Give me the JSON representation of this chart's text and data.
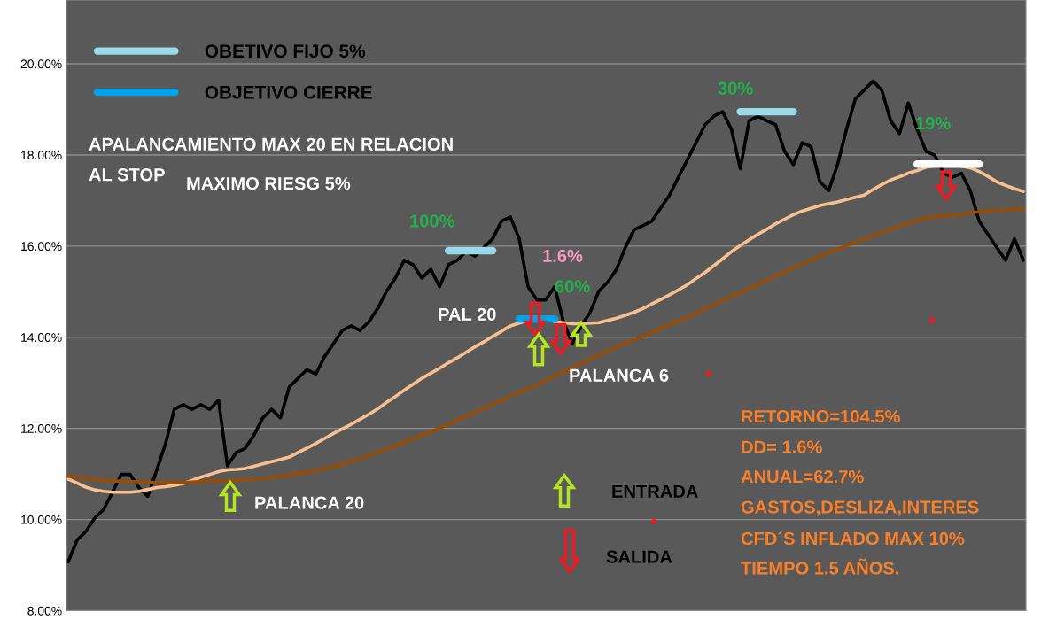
{
  "chart_data": {
    "type": "line",
    "categories": [
      null,
      null,
      null,
      null,
      null,
      null,
      null,
      null,
      null,
      null,
      null,
      null,
      null,
      null,
      null,
      null,
      null,
      null,
      null,
      null,
      null,
      null,
      null,
      null,
      null,
      null,
      null,
      null,
      null,
      null,
      null,
      null,
      null,
      null,
      null,
      null,
      null,
      null,
      null,
      null,
      null,
      null,
      null,
      null,
      null,
      null,
      null,
      null,
      null,
      null,
      null,
      null,
      null,
      null,
      null,
      null,
      null,
      null,
      null,
      null,
      null,
      null,
      null,
      null,
      null,
      null,
      null,
      null,
      null,
      null,
      null,
      null,
      null,
      null,
      null,
      null,
      null,
      null,
      null,
      null,
      null,
      null,
      null,
      null,
      null,
      null,
      null,
      null,
      null,
      null,
      null,
      null,
      null,
      null,
      null,
      null,
      null,
      null,
      null,
      null,
      null,
      null,
      null,
      null,
      null,
      null,
      null,
      null,
      null
    ],
    "series": [
      {
        "color": "#000000",
        "values": [
          9.07,
          9.55,
          9.74,
          10.03,
          10.22,
          10.6,
          10.99,
          10.99,
          10.7,
          10.51,
          11.08,
          11.66,
          12.42,
          12.52,
          12.42,
          12.52,
          12.42,
          12.62,
          11.18,
          11.47,
          11.56,
          11.85,
          12.23,
          12.42,
          12.23,
          12.91,
          13.1,
          13.29,
          13.19,
          13.58,
          13.86,
          14.15,
          14.25,
          14.15,
          14.34,
          14.63,
          15.01,
          15.3,
          15.69,
          15.59,
          15.3,
          15.49,
          15.11,
          15.59,
          15.69,
          15.88,
          15.78,
          15.97,
          16.16,
          16.55,
          16.64,
          16.16,
          15.11,
          14.82,
          14.82,
          15.11,
          14.34,
          13.86,
          14.25,
          14.54,
          15.01,
          15.21,
          15.49,
          15.97,
          16.36,
          16.45,
          16.55,
          16.84,
          17.12,
          17.51,
          17.89,
          18.27,
          18.66,
          18.85,
          18.95,
          18.56,
          17.7,
          18.75,
          18.85,
          18.75,
          18.66,
          18.08,
          17.79,
          18.27,
          18.18,
          17.41,
          17.22,
          17.79,
          18.56,
          19.23,
          19.42,
          19.62,
          19.42,
          18.75,
          18.47,
          19.14,
          18.56,
          18.08,
          17.99,
          17.6,
          17.51,
          17.6,
          17.22,
          16.55,
          16.26,
          15.97,
          15.69,
          16.16,
          15.69
        ]
      },
      {
        "color": "#f8c090",
        "values": [
          10.89,
          10.8,
          10.71,
          10.65,
          10.62,
          10.6,
          10.6,
          10.6,
          10.62,
          10.66,
          10.7,
          10.72,
          10.75,
          10.79,
          10.86,
          10.93,
          10.99,
          11.05,
          11.09,
          11.1,
          11.12,
          11.17,
          11.22,
          11.27,
          11.32,
          11.37,
          11.47,
          11.57,
          11.67,
          11.78,
          11.89,
          11.99,
          12.09,
          12.2,
          12.31,
          12.43,
          12.57,
          12.7,
          12.84,
          12.97,
          13.1,
          13.21,
          13.32,
          13.44,
          13.55,
          13.67,
          13.79,
          13.9,
          14.02,
          14.13,
          14.25,
          14.31,
          14.37,
          null,
          null,
          14.34,
          14.32,
          14.3,
          14.3,
          14.31,
          14.32,
          14.37,
          14.42,
          14.48,
          14.55,
          14.63,
          14.73,
          14.83,
          14.93,
          15.04,
          15.15,
          15.29,
          15.42,
          15.57,
          15.72,
          15.88,
          16.01,
          16.14,
          16.26,
          16.37,
          16.49,
          16.59,
          16.69,
          16.77,
          16.83,
          16.89,
          16.93,
          16.97,
          17.02,
          17.07,
          17.12,
          17.24,
          17.35,
          17.45,
          17.52,
          17.6,
          17.66,
          17.73,
          17.77,
          17.78,
          17.79,
          17.75,
          17.72,
          17.64,
          17.53,
          17.41,
          17.33,
          17.26,
          17.2
        ]
      },
      {
        "color": "#994c00",
        "values": [
          10.95,
          10.93,
          10.9,
          10.88,
          10.86,
          10.85,
          10.84,
          10.83,
          10.83,
          10.82,
          10.81,
          10.81,
          10.81,
          10.81,
          10.82,
          10.83,
          10.84,
          10.85,
          10.85,
          10.86,
          10.87,
          10.89,
          10.9,
          10.92,
          10.95,
          10.97,
          11.01,
          11.04,
          11.08,
          11.12,
          11.16,
          11.22,
          11.28,
          11.34,
          11.41,
          11.47,
          11.55,
          11.62,
          11.7,
          11.77,
          11.85,
          11.93,
          12.0,
          12.09,
          12.18,
          12.27,
          12.35,
          12.44,
          12.53,
          12.62,
          12.71,
          12.79,
          12.87,
          12.96,
          13.05,
          13.15,
          13.24,
          13.33,
          13.43,
          13.52,
          13.61,
          13.7,
          13.79,
          13.87,
          13.94,
          14.02,
          14.1,
          14.19,
          14.27,
          14.36,
          14.44,
          14.53,
          14.62,
          14.72,
          14.81,
          14.9,
          14.98,
          15.07,
          15.16,
          15.25,
          15.34,
          15.43,
          15.52,
          15.61,
          15.7,
          15.78,
          15.86,
          15.93,
          16.01,
          16.08,
          16.15,
          16.23,
          16.3,
          16.37,
          16.44,
          16.51,
          16.56,
          16.61,
          16.65,
          16.67,
          16.68,
          16.7,
          16.73,
          16.75,
          16.77,
          16.78,
          16.8,
          16.81,
          16.82
        ]
      },
      {
        "name": "OBETIVO FIJO 5%",
        "color": "#99dbea",
        "values": [
          null,
          null,
          null,
          null,
          null,
          null,
          null,
          null,
          null,
          null,
          null,
          null,
          null,
          null,
          null,
          null,
          null,
          null,
          null,
          null,
          null,
          null,
          null,
          null,
          null,
          null,
          null,
          null,
          null,
          null,
          null,
          null,
          null,
          null,
          null,
          null,
          null,
          null,
          null,
          null,
          null,
          null,
          null,
          15.9,
          15.9,
          15.9,
          15.9,
          15.9,
          15.9,
          null,
          null,
          null,
          null,
          null,
          null,
          null,
          null,
          null,
          null,
          null,
          null,
          null,
          null,
          null,
          null,
          null,
          null,
          null,
          null,
          null,
          null,
          null,
          null,
          null,
          null,
          null,
          18.95,
          18.95,
          18.95,
          18.95,
          18.95,
          18.95,
          18.95,
          null,
          null,
          null,
          null,
          null,
          null,
          null,
          null,
          null,
          null,
          null,
          null,
          null,
          null,
          null,
          null,
          null,
          null,
          null,
          null,
          null,
          null,
          null,
          null,
          null,
          null
        ]
      },
      {
        "name": "OBJETIVO CIERRE",
        "color": "#00a2e8",
        "values": [
          null,
          null,
          null,
          null,
          null,
          null,
          null,
          null,
          null,
          null,
          null,
          null,
          null,
          null,
          null,
          null,
          null,
          null,
          null,
          null,
          null,
          null,
          null,
          null,
          null,
          null,
          null,
          null,
          null,
          null,
          null,
          null,
          null,
          null,
          null,
          null,
          null,
          null,
          null,
          null,
          null,
          null,
          null,
          null,
          null,
          null,
          null,
          null,
          null,
          null,
          null,
          14.4,
          14.4,
          14.4,
          14.4,
          14.4,
          null,
          null,
          null,
          null,
          null,
          null,
          null,
          null,
          null,
          null,
          null,
          null,
          null,
          null,
          null,
          null,
          null,
          null,
          null,
          null,
          null,
          null,
          null,
          null,
          null,
          null,
          null,
          null,
          null,
          null,
          null,
          null,
          null,
          null,
          null,
          null,
          null,
          null,
          null,
          null,
          null,
          null,
          null,
          null,
          null,
          null,
          null,
          null,
          null,
          null,
          null,
          null,
          null
        ]
      },
      {
        "color": "#ffffff",
        "values": [
          null,
          null,
          null,
          null,
          null,
          null,
          null,
          null,
          null,
          null,
          null,
          null,
          null,
          null,
          null,
          null,
          null,
          null,
          null,
          null,
          null,
          null,
          null,
          null,
          null,
          null,
          null,
          null,
          null,
          null,
          null,
          null,
          null,
          null,
          null,
          null,
          null,
          null,
          null,
          null,
          null,
          null,
          null,
          null,
          null,
          null,
          null,
          null,
          null,
          null,
          null,
          null,
          null,
          null,
          null,
          null,
          null,
          null,
          null,
          null,
          null,
          null,
          null,
          null,
          null,
          null,
          null,
          null,
          null,
          null,
          null,
          null,
          null,
          null,
          null,
          null,
          null,
          null,
          null,
          null,
          null,
          null,
          null,
          null,
          null,
          null,
          null,
          null,
          null,
          null,
          null,
          null,
          null,
          null,
          null,
          null,
          17.8,
          17.8,
          17.8,
          17.8,
          17.8,
          17.8,
          17.8,
          17.8,
          null,
          null,
          null,
          null,
          null
        ]
      }
    ],
    "ylim": [
      8,
      21.4
    ],
    "yticks": [
      {
        "value": 8,
        "label": "8.00%"
      },
      {
        "value": 10,
        "label": "10.00%"
      },
      {
        "value": 12,
        "label": "12.00%"
      },
      {
        "value": 14,
        "label": "14.00%"
      },
      {
        "value": 16,
        "label": "16.00%"
      },
      {
        "value": 18,
        "label": "18.00%"
      },
      {
        "value": 20,
        "label": "20.00%"
      }
    ],
    "grid": "y",
    "legend": "top left",
    "tick_labels": "y",
    "annotations": [
      "100%",
      "30%",
      "19%",
      "60%",
      "1.6%",
      "PAL 20",
      "PALANCA 6",
      "PALANCA 20",
      "APALANCAMIENTO MAX 20 EN RELACION",
      "AL STOP",
      "MAXIMO RIESG 5%",
      "ENTRADA",
      "SALIDA",
      "RETORNO=104.5%",
      "DD= 1.6%",
      "ANUAL=62.7%",
      "GASTOS,DESLIZA,INTERES",
      "CFD´S INFLADO MAX 10%",
      "TIEMPO 1.5 AÑOS."
    ]
  }
}
